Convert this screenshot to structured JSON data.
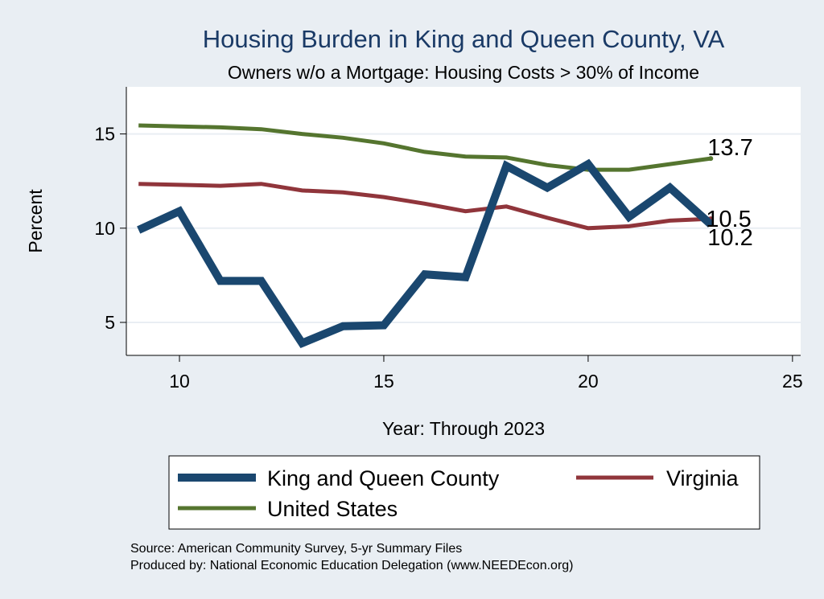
{
  "chart_data": {
    "type": "line",
    "title": "Housing Burden in King and Queen County, VA",
    "subtitle": "Owners w/o a Mortgage: Housing Costs > 30% of Income",
    "xlabel": "Year: Through 2023",
    "ylabel": "Percent",
    "xlim": [
      8.7,
      25.2
    ],
    "ylim": [
      3.25,
      17.5
    ],
    "xticks": [
      10,
      15,
      20,
      25
    ],
    "yticks": [
      5,
      10,
      15
    ],
    "grid": true,
    "legend_position": "bottom",
    "x": [
      9,
      10,
      11,
      12,
      13,
      14,
      15,
      16,
      17,
      18,
      19,
      20,
      21,
      22,
      23
    ],
    "series": [
      {
        "name": "King and Queen County",
        "color": "#1a476f",
        "values": [
          9.9,
          10.9,
          7.2,
          7.2,
          3.9,
          4.8,
          4.85,
          7.55,
          7.4,
          13.3,
          12.15,
          13.4,
          10.6,
          12.15,
          10.2
        ],
        "end_label": "10.2"
      },
      {
        "name": "Virginia",
        "color": "#90353b",
        "values": [
          12.35,
          12.3,
          12.25,
          12.35,
          12.0,
          11.9,
          11.65,
          11.3,
          10.9,
          11.15,
          10.55,
          10.0,
          10.1,
          10.4,
          10.5
        ],
        "end_label": "10.5"
      },
      {
        "name": "United States",
        "color": "#55752f",
        "values": [
          15.45,
          15.4,
          15.35,
          15.25,
          15.0,
          14.8,
          14.5,
          14.05,
          13.8,
          13.75,
          13.35,
          13.1,
          13.1,
          13.4,
          13.7
        ],
        "end_label": "13.7"
      }
    ],
    "source_lines": [
      "Source: American Community Survey, 5-yr Summary Files",
      "Produced by: National Economic Education Delegation (www.NEEDEcon.org)"
    ]
  }
}
